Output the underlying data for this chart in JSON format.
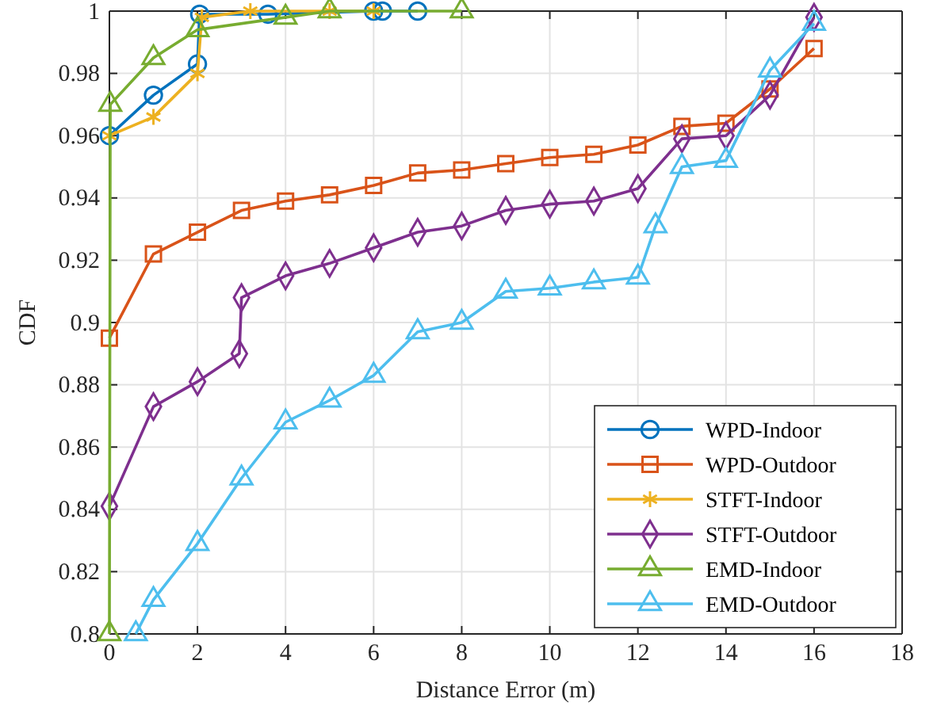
{
  "chart_data": {
    "type": "line",
    "xlabel": "Distance Error (m)",
    "ylabel": "CDF",
    "xlim": [
      0,
      18
    ],
    "xticks": [
      0,
      2,
      4,
      6,
      8,
      10,
      12,
      14,
      16,
      18
    ],
    "ylim": [
      0.8,
      1
    ],
    "yticks": [
      0.8,
      0.82,
      0.84,
      0.86,
      0.88,
      0.9,
      0.92,
      0.94,
      0.96,
      0.98,
      1
    ],
    "grid": true,
    "legend": "bottom right",
    "line_style": "solid",
    "series": [
      {
        "name": "WPD-Indoor",
        "color": "#0072bd",
        "marker": "circle",
        "x": [
          0,
          1,
          2,
          2.05,
          3.6,
          6,
          6.2,
          7
        ],
        "values": [
          0.96,
          0.973,
          0.983,
          0.999,
          0.999,
          1,
          1,
          1
        ]
      },
      {
        "name": "WPD-Outdoor",
        "color": "#d95319",
        "marker": "square",
        "x": [
          0,
          1,
          2,
          3,
          4,
          5,
          6,
          7,
          8,
          9,
          10,
          11,
          12,
          13,
          14,
          15,
          16
        ],
        "values": [
          0.895,
          0.922,
          0.929,
          0.936,
          0.939,
          0.941,
          0.944,
          0.948,
          0.949,
          0.951,
          0.953,
          0.954,
          0.957,
          0.963,
          0.964,
          0.975,
          0.988
        ]
      },
      {
        "name": "STFT-Indoor",
        "color": "#edb120",
        "marker": "cross",
        "x": [
          0,
          1,
          2,
          2.1,
          3.2,
          5,
          6
        ],
        "values": [
          0.96,
          0.966,
          0.98,
          0.998,
          1,
          1,
          1
        ]
      },
      {
        "name": "STFT-Outdoor",
        "color": "#7e2f8e",
        "marker": "diamond",
        "x": [
          0,
          1,
          2,
          2.95,
          3,
          4,
          5,
          6,
          7,
          8,
          9,
          10,
          11,
          12,
          13,
          14,
          15,
          16
        ],
        "values": [
          0.841,
          0.873,
          0.881,
          0.89,
          0.908,
          0.915,
          0.919,
          0.924,
          0.929,
          0.931,
          0.936,
          0.938,
          0.939,
          0.943,
          0.959,
          0.96,
          0.973,
          0.998
        ]
      },
      {
        "name": "EMD-Indoor",
        "color": "#77ac30",
        "marker": "triangle",
        "x": [
          0,
          0.02,
          1,
          2,
          4,
          5,
          8
        ],
        "values": [
          0.8,
          0.97,
          0.985,
          0.994,
          0.998,
          1,
          1
        ]
      },
      {
        "name": "EMD-Outdoor",
        "color": "#4dbeee",
        "marker": "triangle",
        "x": [
          0.6,
          1,
          2,
          3,
          4,
          5,
          6,
          7,
          8,
          9,
          10,
          11,
          12,
          12.4,
          13,
          14,
          15,
          16
        ],
        "values": [
          0.8,
          0.811,
          0.829,
          0.85,
          0.868,
          0.875,
          0.883,
          0.897,
          0.9,
          0.91,
          0.911,
          0.913,
          0.9145,
          0.931,
          0.95,
          0.952,
          0.981,
          0.996
        ]
      }
    ]
  }
}
